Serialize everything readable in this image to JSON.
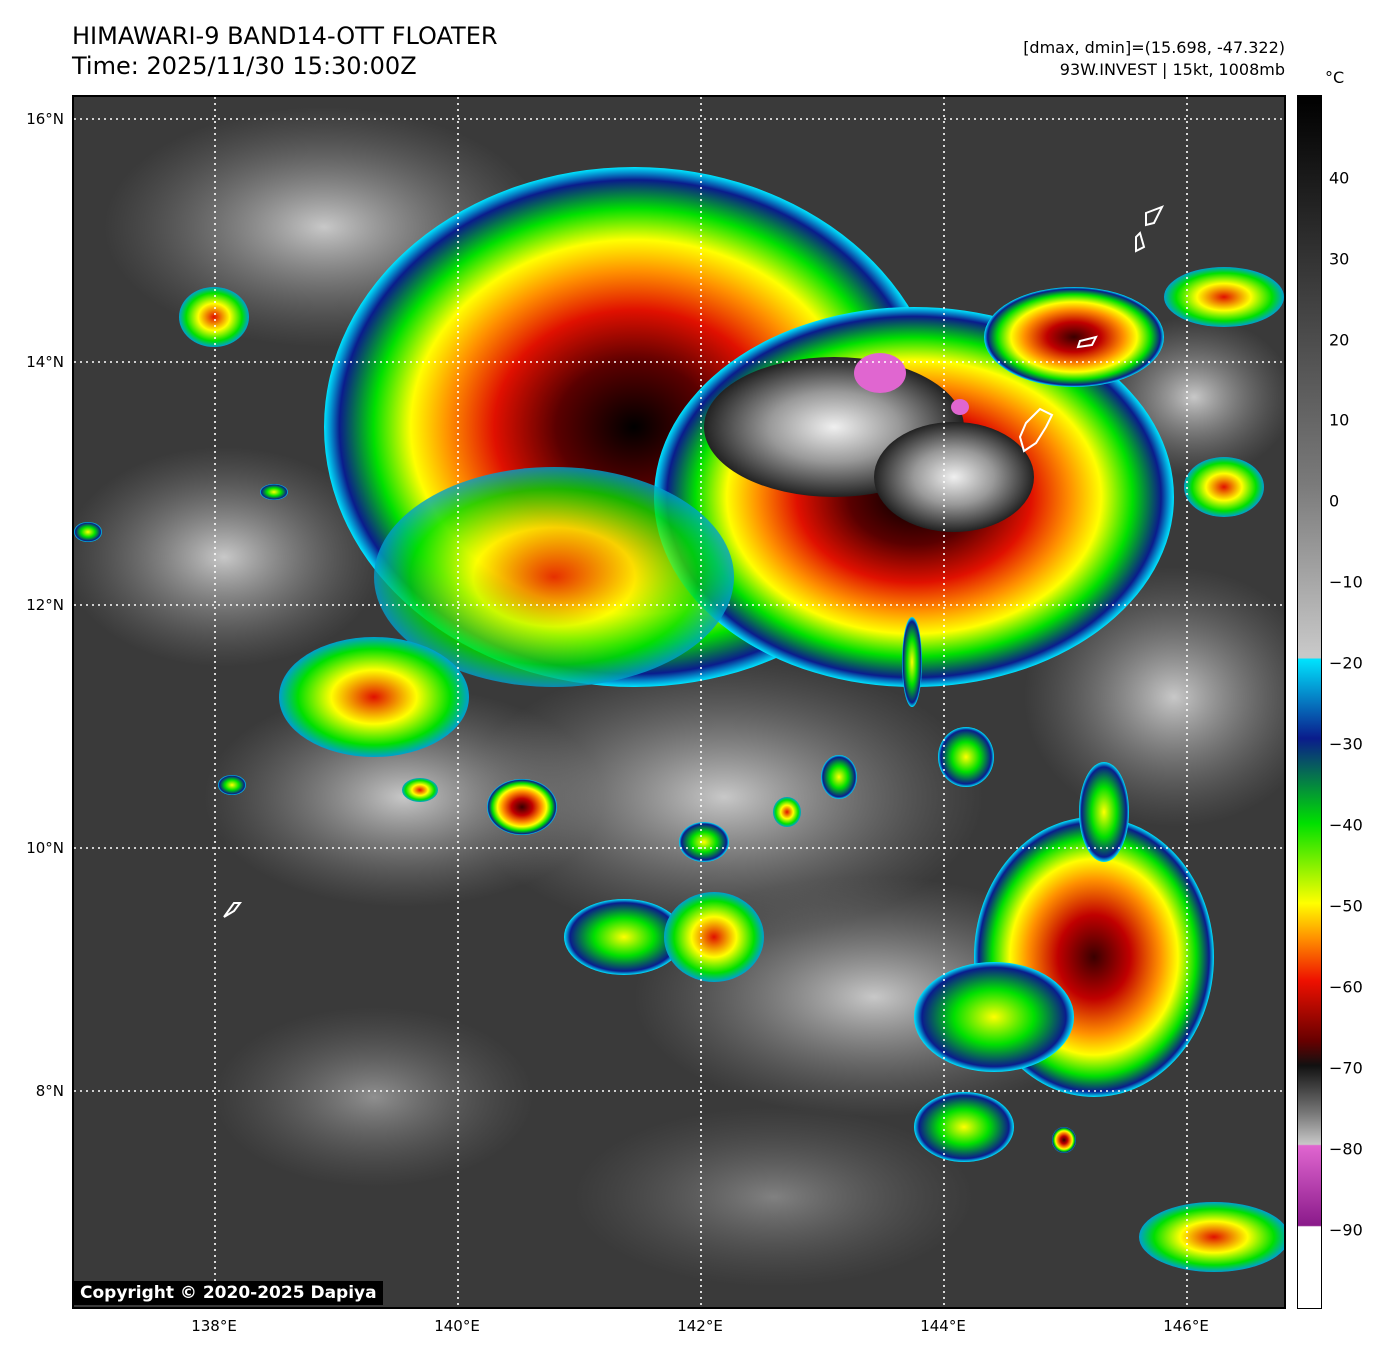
{
  "header": {
    "title_line1": "HIMAWARI-9 BAND14-OTT FLOATER",
    "title_line2": "Time: 2025/11/30 15:30:00Z",
    "info_line1": "[dmax, dmin]=(15.698, -47.322)",
    "info_line2": "93W.INVEST | 15kt, 1008mb"
  },
  "map": {
    "lat_labels": [
      "16°N",
      "14°N",
      "12°N",
      "10°N",
      "8°N"
    ],
    "lon_labels": [
      "138°E",
      "140°E",
      "142°E",
      "144°E",
      "146°E"
    ],
    "gridline_color": "#ffffff",
    "coastline_color": "#ffffff"
  },
  "colorbar": {
    "unit": "°C",
    "tick_labels": [
      "40",
      "30",
      "20",
      "10",
      "0",
      "−10",
      "−20",
      "−30",
      "−40",
      "−50",
      "−60",
      "−70",
      "−80",
      "−90"
    ],
    "colors": {
      "warm_black": "#000000",
      "mid_gray": "#7a7a7a",
      "light_gray": "#c8c8c8",
      "cyan": "#00e5ff",
      "blue": "#0a1c8c",
      "green": "#00e000",
      "yellow": "#ffff00",
      "orange": "#ff9000",
      "red": "#ee1000",
      "dark_red": "#660000",
      "cold_black": "#111111",
      "pink": "#e066d0",
      "purple": "#8a1a8a",
      "white": "#ffffff"
    }
  },
  "footer": {
    "copyright": "Copyright © 2020-2025 Dapiya"
  }
}
